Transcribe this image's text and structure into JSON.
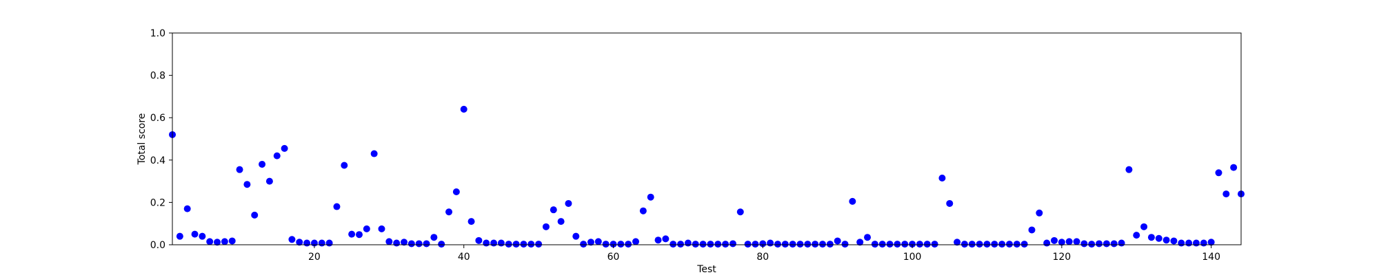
{
  "chart_data": {
    "type": "scatter",
    "title": "",
    "xlabel": "Test",
    "ylabel": "Total score",
    "xlim": [
      1,
      144
    ],
    "ylim": [
      0.0,
      1.0
    ],
    "xticks": [
      20,
      40,
      60,
      80,
      100,
      120,
      140
    ],
    "xtick_labels": [
      "20",
      "40",
      "60",
      "80",
      "100",
      "120",
      "140"
    ],
    "yticks": [
      0.0,
      0.2,
      0.4,
      0.6,
      0.8,
      1.0
    ],
    "ytick_labels": [
      "0.0",
      "0.2",
      "0.4",
      "0.6",
      "0.8",
      "1.0"
    ],
    "grid": false,
    "marker_color": "#0000ff",
    "x": [
      1,
      2,
      3,
      4,
      5,
      6,
      7,
      8,
      9,
      10,
      11,
      12,
      13,
      14,
      15,
      16,
      17,
      18,
      19,
      20,
      21,
      22,
      23,
      24,
      25,
      26,
      27,
      28,
      29,
      30,
      31,
      32,
      33,
      34,
      35,
      36,
      37,
      38,
      39,
      40,
      41,
      42,
      43,
      44,
      45,
      46,
      47,
      48,
      49,
      50,
      51,
      52,
      53,
      54,
      55,
      56,
      57,
      58,
      59,
      60,
      61,
      62,
      63,
      64,
      65,
      66,
      67,
      68,
      69,
      70,
      71,
      72,
      73,
      74,
      75,
      76,
      77,
      78,
      79,
      80,
      81,
      82,
      83,
      84,
      85,
      86,
      87,
      88,
      89,
      90,
      91,
      92,
      93,
      94,
      95,
      96,
      97,
      98,
      99,
      100,
      101,
      102,
      103,
      104,
      105,
      106,
      107,
      108,
      109,
      110,
      111,
      112,
      113,
      114,
      115,
      116,
      117,
      118,
      119,
      120,
      121,
      122,
      123,
      124,
      125,
      126,
      127,
      128,
      129,
      130,
      131,
      132,
      133,
      134,
      135,
      136,
      137,
      138,
      139,
      140,
      141,
      142,
      143,
      144
    ],
    "y": [
      0.52,
      0.04,
      0.17,
      0.05,
      0.04,
      0.015,
      0.012,
      0.015,
      0.018,
      0.355,
      0.285,
      0.14,
      0.38,
      0.3,
      0.42,
      0.455,
      0.025,
      0.012,
      0.008,
      0.008,
      0.008,
      0.008,
      0.18,
      0.375,
      0.05,
      0.048,
      0.075,
      0.43,
      0.075,
      0.015,
      0.008,
      0.012,
      0.005,
      0.005,
      0.005,
      0.035,
      0.003,
      0.155,
      0.25,
      0.64,
      0.11,
      0.02,
      0.008,
      0.008,
      0.008,
      0.003,
      0.003,
      0.003,
      0.003,
      0.003,
      0.085,
      0.165,
      0.11,
      0.195,
      0.04,
      0.003,
      0.012,
      0.015,
      0.003,
      0.003,
      0.003,
      0.003,
      0.015,
      0.16,
      0.225,
      0.022,
      0.028,
      0.003,
      0.003,
      0.008,
      0.003,
      0.003,
      0.003,
      0.003,
      0.003,
      0.005,
      0.155,
      0.003,
      0.003,
      0.005,
      0.008,
      0.003,
      0.003,
      0.003,
      0.003,
      0.003,
      0.003,
      0.003,
      0.003,
      0.018,
      0.003,
      0.205,
      0.012,
      0.035,
      0.003,
      0.003,
      0.003,
      0.003,
      0.003,
      0.003,
      0.003,
      0.003,
      0.003,
      0.315,
      0.195,
      0.012,
      0.003,
      0.003,
      0.003,
      0.003,
      0.003,
      0.003,
      0.003,
      0.003,
      0.003,
      0.07,
      0.15,
      0.008,
      0.02,
      0.012,
      0.015,
      0.015,
      0.005,
      0.003,
      0.005,
      0.005,
      0.005,
      0.008,
      0.355,
      0.045,
      0.085,
      0.035,
      0.03,
      0.022,
      0.018,
      0.008,
      0.008,
      0.008,
      0.008,
      0.012,
      0.34,
      0.24,
      0.365,
      0.24
    ]
  }
}
